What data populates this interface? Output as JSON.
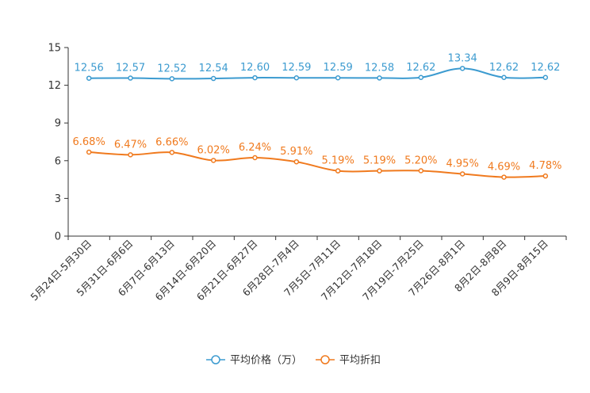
{
  "chart_data": {
    "type": "line",
    "categories": [
      "5月24日-5月30日",
      "5月31日-6月6日",
      "6月7日-6月13日",
      "6月14日-6月20日",
      "6月21日-6月27日",
      "6月28日-7月4日",
      "7月5日-7月11日",
      "7月12日-7月18日",
      "7月19日-7月25日",
      "7月26日-8月1日",
      "8月2日-8月8日",
      "8月9日-8月15日"
    ],
    "ylim": [
      0,
      15
    ],
    "yticks": [
      "0",
      "3",
      "6",
      "9",
      "12",
      "15"
    ],
    "series": [
      {
        "name": "平均价格（万）",
        "color": "#3c9bd0",
        "values": [
          12.56,
          12.57,
          12.52,
          12.54,
          12.6,
          12.59,
          12.59,
          12.58,
          12.62,
          13.34,
          12.62,
          12.62
        ],
        "labels": [
          "12.56",
          "12.57",
          "12.52",
          "12.54",
          "12.60",
          "12.59",
          "12.59",
          "12.58",
          "12.62",
          "13.34",
          "12.62",
          "12.62"
        ]
      },
      {
        "name": "平均折扣",
        "color": "#f07a1e",
        "values": [
          6.68,
          6.47,
          6.66,
          6.02,
          6.24,
          5.91,
          5.19,
          5.19,
          5.2,
          4.95,
          4.69,
          4.78
        ],
        "labels": [
          "6.68%",
          "6.47%",
          "6.66%",
          "6.02%",
          "6.24%",
          "5.91%",
          "5.19%",
          "5.19%",
          "5.20%",
          "4.95%",
          "4.69%",
          "4.78%"
        ]
      }
    ]
  }
}
